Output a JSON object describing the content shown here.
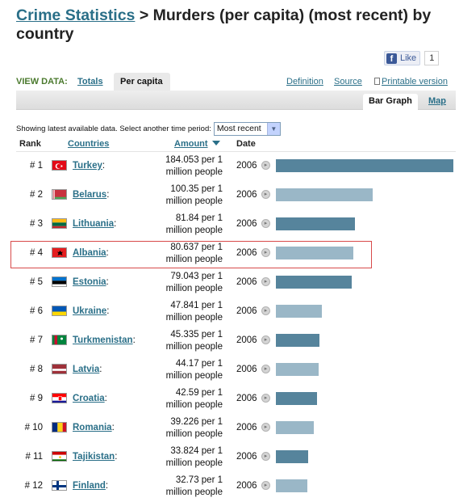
{
  "header": {
    "title_link": "Crime Statistics",
    "title_rest": " > Murders (per capita) (most recent) by country"
  },
  "facebook": {
    "like_label": "Like",
    "count": "1",
    "icon": "facebook-f-icon"
  },
  "view_data": {
    "label": "VIEW DATA:",
    "tab_totals": "Totals",
    "tab_per_capita": "Per capita",
    "link_definition": "Definition",
    "link_source": "Source",
    "link_printable": "Printable version"
  },
  "graph_tabs": {
    "bar_graph": "Bar Graph",
    "map": "Map"
  },
  "filter": {
    "text": "Showing latest available data. Select another time period:",
    "selected": "Most recent"
  },
  "columns": {
    "rank": "Rank",
    "countries": "Countries",
    "amount": "Amount",
    "date": "Date"
  },
  "colors": {
    "accent": "#2a6f88",
    "bar_dark": "#56849c",
    "bar_light": "#9ab7c7",
    "highlight": "#d84a4a"
  },
  "rows": [
    {
      "rank": "# 1",
      "country": "Turkey",
      "amount_line1": "184.053 per 1",
      "amount_line2": "million people",
      "date": "2006",
      "value": 184.053,
      "flag": "turkey-flag"
    },
    {
      "rank": "# 2",
      "country": "Belarus",
      "amount_line1": "100.35 per 1",
      "amount_line2": "million people",
      "date": "2006",
      "value": 100.35,
      "flag": "belarus-flag"
    },
    {
      "rank": "# 3",
      "country": "Lithuania",
      "amount_line1": "81.84 per 1",
      "amount_line2": "million people",
      "date": "2006",
      "value": 81.84,
      "flag": "lithuania-flag"
    },
    {
      "rank": "# 4",
      "country": "Albania",
      "amount_line1": "80.637 per 1",
      "amount_line2": "million people",
      "date": "2006",
      "value": 80.637,
      "flag": "albania-flag"
    },
    {
      "rank": "# 5",
      "country": "Estonia",
      "amount_line1": "79.043 per 1",
      "amount_line2": "million people",
      "date": "2006",
      "value": 79.043,
      "flag": "estonia-flag"
    },
    {
      "rank": "# 6",
      "country": "Ukraine",
      "amount_line1": "47.841 per 1",
      "amount_line2": "million people",
      "date": "2006",
      "value": 47.841,
      "flag": "ukraine-flag"
    },
    {
      "rank": "# 7",
      "country": "Turkmenistan",
      "amount_line1": "45.335 per 1",
      "amount_line2": "million people",
      "date": "2006",
      "value": 45.335,
      "flag": "turkmenistan-flag"
    },
    {
      "rank": "# 8",
      "country": "Latvia",
      "amount_line1": "44.17 per 1",
      "amount_line2": "million people",
      "date": "2006",
      "value": 44.17,
      "flag": "latvia-flag"
    },
    {
      "rank": "# 9",
      "country": "Croatia",
      "amount_line1": "42.59 per 1",
      "amount_line2": "million people",
      "date": "2006",
      "value": 42.59,
      "flag": "croatia-flag"
    },
    {
      "rank": "# 10",
      "country": "Romania",
      "amount_line1": "39.226 per 1",
      "amount_line2": "million people",
      "date": "2006",
      "value": 39.226,
      "flag": "romania-flag"
    },
    {
      "rank": "# 11",
      "country": "Tajikistan",
      "amount_line1": "33.824 per 1",
      "amount_line2": "million people",
      "date": "2006",
      "value": 33.824,
      "flag": "tajikistan-flag"
    },
    {
      "rank": "# 12",
      "country": "Finland",
      "amount_line1": "32.73 per 1",
      "amount_line2": "million people",
      "date": "2006",
      "value": 32.73,
      "flag": "finland-flag"
    }
  ]
}
